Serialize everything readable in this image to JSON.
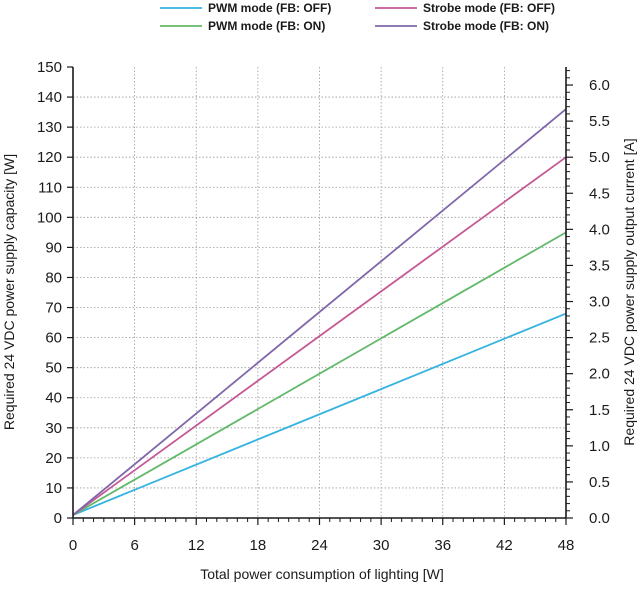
{
  "chart_data": {
    "type": "line",
    "title": "",
    "xlabel": "Total power consumption of lighting [W]",
    "ylabel": "Required 24 VDC power supply capacity [W]",
    "y2label": "Required 24 VDC power supply output current [A]",
    "xlim": [
      0,
      48
    ],
    "ylim": [
      0,
      150
    ],
    "y2lim": [
      0,
      6.25
    ],
    "x_ticks": [
      "0",
      "6",
      "12",
      "18",
      "24",
      "30",
      "36",
      "42",
      "48"
    ],
    "y_ticks": [
      "0",
      "10",
      "20",
      "30",
      "40",
      "50",
      "60",
      "70",
      "80",
      "90",
      "100",
      "110",
      "120",
      "130",
      "140",
      "150"
    ],
    "y2_ticks": [
      "0.0",
      "0.5",
      "1.0",
      "1.5",
      "2.0",
      "2.5",
      "3.0",
      "3.5",
      "4.0",
      "4.5",
      "5.0",
      "5.5",
      "6.0"
    ],
    "grid": true,
    "legend_position": "top",
    "series": [
      {
        "name": "PWM mode (FB: OFF)",
        "color": "#35b3e0",
        "x": [
          0,
          48
        ],
        "y": [
          1,
          68
        ]
      },
      {
        "name": "PWM mode (FB: ON)",
        "color": "#62b96a",
        "x": [
          0,
          48
        ],
        "y": [
          1,
          95
        ]
      },
      {
        "name": "Strobe mode (FB: OFF)",
        "color": "#c55895",
        "x": [
          0,
          48
        ],
        "y": [
          1,
          120
        ]
      },
      {
        "name": "Strobe mode (FB: ON)",
        "color": "#8067aa",
        "x": [
          0,
          48
        ],
        "y": [
          1,
          136
        ]
      }
    ]
  }
}
